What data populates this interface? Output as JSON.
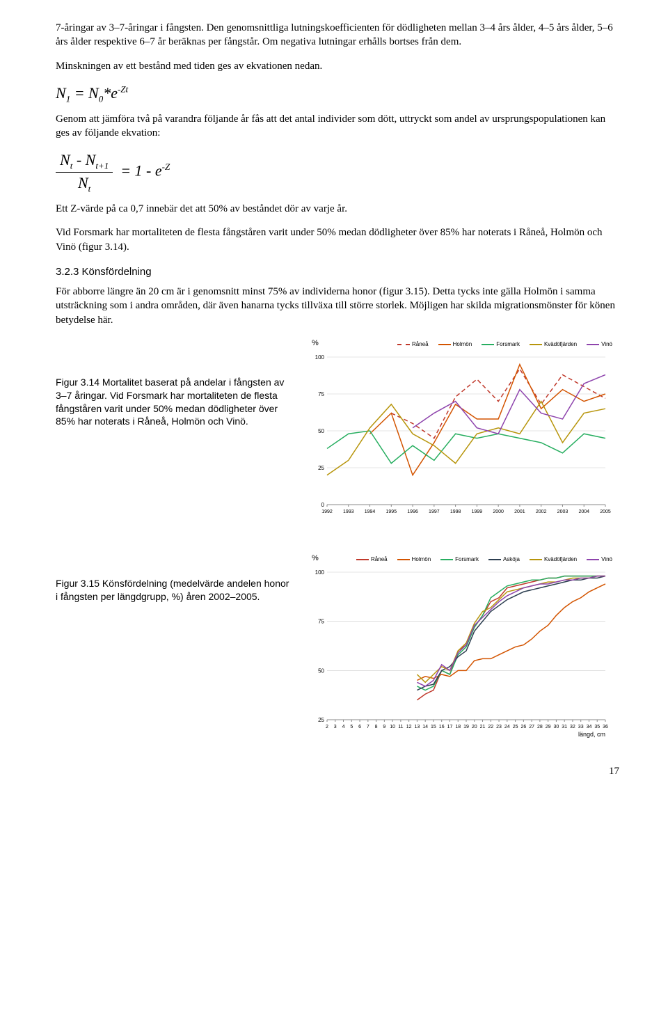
{
  "paragraphs": {
    "p1": "7-åringar av 3–7-åringar i fångsten. Den genomsnittliga lutningskoefficienten för dödligheten mellan 3–4 års ålder, 4–5 års ålder, 5–6 års ålder respektive 6–7 år beräknas per fångstår. Om negativa lutningar erhålls bortses från dem.",
    "p2": "Minskningen av ett bestånd med tiden ges av ekvationen nedan.",
    "p3": "Genom att jämföra två på varandra följande år fås att det antal individer som dött, uttryckt som andel av ursprungspopulationen kan ges av följande ekvation:",
    "p4": "Ett Z-värde på ca 0,7 innebär det att 50% av beståndet dör av varje år.",
    "p5": "Vid Forsmark har mortaliteten de flesta fångståren varit under 50% medan dödligheter över 85% har noterats i Råneå, Holmön och Vinö (figur 3.14).",
    "p6": "För abborre längre än 20 cm är i genomsnitt minst 75% av individerna honor (figur 3.15). Detta tycks inte gälla Holmön i samma utsträckning som i andra områden, där även hanarna tycks tillväxa till större storlek. Möjligen har skilda migrationsmönster för könen betydelse här."
  },
  "heading_323": "3.2.3 Könsfördelning",
  "fig314_caption": "Figur 3.14 Mortalitet baserat på andelar i fångsten av 3–7 åringar. Vid Forsmark har mortaliteten de flesta fångståren varit under 50% medan dödligheter över 85% har noterats i Råneå, Holmön och Vinö.",
  "fig315_caption": "Figur 3.15 Könsfördelning (medelvärde andelen honor i fångsten per längdgrupp, %) åren 2002–2005.",
  "page_number": "17",
  "chart314": {
    "type": "line",
    "y_label": "%",
    "ylim": [
      0,
      100
    ],
    "ytick_step": 25,
    "xticks": [
      "1992",
      "1993",
      "1994",
      "1995",
      "1996",
      "1997",
      "1998",
      "1999",
      "2000",
      "2001",
      "2002",
      "2003",
      "2004",
      "2005"
    ],
    "background_color": "#ffffff",
    "grid_color": "#cccccc",
    "axis_color": "#888888",
    "series": [
      {
        "name": "Råneå",
        "color": "#c0392b",
        "dash": "6,4",
        "values": [
          null,
          null,
          null,
          62,
          55,
          45,
          73,
          85,
          70,
          92,
          68,
          88,
          80,
          72
        ]
      },
      {
        "name": "Holmön",
        "color": "#d35400",
        "dash": null,
        "values": [
          null,
          null,
          48,
          62,
          20,
          42,
          68,
          58,
          58,
          95,
          65,
          78,
          70,
          75
        ]
      },
      {
        "name": "Forsmark",
        "color": "#27ae60",
        "dash": null,
        "values": [
          38,
          48,
          50,
          28,
          40,
          30,
          48,
          45,
          48,
          45,
          42,
          35,
          48,
          45
        ]
      },
      {
        "name": "Kvädöfjärden",
        "color": "#b7950b",
        "dash": null,
        "values": [
          20,
          30,
          52,
          68,
          48,
          40,
          28,
          48,
          52,
          48,
          70,
          42,
          62,
          65
        ]
      },
      {
        "name": "Vinö",
        "color": "#8e44ad",
        "dash": null,
        "values": [
          null,
          null,
          null,
          null,
          52,
          62,
          70,
          52,
          48,
          78,
          62,
          58,
          82,
          88
        ]
      }
    ]
  },
  "chart315": {
    "type": "line",
    "y_label": "%",
    "ylim": [
      25,
      100
    ],
    "ytick_step": 25,
    "x_axis_label": "längd, cm",
    "xticks": [
      "2",
      "3",
      "4",
      "5",
      "6",
      "7",
      "8",
      "9",
      "10",
      "11",
      "12",
      "13",
      "14",
      "15",
      "16",
      "17",
      "18",
      "19",
      "20",
      "21",
      "22",
      "23",
      "24",
      "25",
      "26",
      "27",
      "28",
      "29",
      "30",
      "31",
      "32",
      "33",
      "34",
      "35",
      "36"
    ],
    "background_color": "#ffffff",
    "grid_color": "#cccccc",
    "axis_color": "#888888",
    "series": [
      {
        "name": "Råneå",
        "color": "#c0392b",
        "dash": null,
        "values": [
          null,
          null,
          null,
          null,
          null,
          null,
          null,
          null,
          null,
          null,
          null,
          35,
          38,
          40,
          50,
          48,
          60,
          63,
          72,
          78,
          85,
          87,
          92,
          93,
          94,
          95,
          96,
          97,
          97,
          98,
          98,
          98,
          98,
          98,
          98
        ]
      },
      {
        "name": "Holmön",
        "color": "#d35400",
        "dash": null,
        "values": [
          null,
          null,
          null,
          null,
          null,
          null,
          null,
          null,
          null,
          null,
          null,
          45,
          47,
          46,
          48,
          47,
          50,
          50,
          55,
          56,
          56,
          58,
          60,
          62,
          63,
          66,
          70,
          73,
          78,
          82,
          85,
          87,
          90,
          92,
          94
        ]
      },
      {
        "name": "Forsmark",
        "color": "#27ae60",
        "dash": null,
        "values": [
          null,
          null,
          null,
          null,
          null,
          null,
          null,
          null,
          null,
          null,
          null,
          42,
          40,
          42,
          50,
          48,
          58,
          62,
          72,
          78,
          87,
          90,
          93,
          94,
          95,
          96,
          96,
          97,
          97,
          98,
          98,
          98,
          98,
          98,
          98
        ]
      },
      {
        "name": "Asköja",
        "color": "#2c3e50",
        "dash": null,
        "values": [
          null,
          null,
          null,
          null,
          null,
          null,
          null,
          null,
          null,
          null,
          null,
          40,
          42,
          43,
          50,
          52,
          57,
          60,
          70,
          75,
          80,
          83,
          86,
          88,
          90,
          91,
          92,
          93,
          94,
          95,
          96,
          96,
          97,
          97,
          98
        ]
      },
      {
        "name": "Kvädöfjärden",
        "color": "#b7950b",
        "dash": null,
        "values": [
          null,
          null,
          null,
          null,
          null,
          null,
          null,
          null,
          null,
          null,
          null,
          48,
          44,
          48,
          52,
          50,
          60,
          64,
          74,
          80,
          82,
          86,
          90,
          91,
          92,
          93,
          94,
          95,
          95,
          96,
          97,
          97,
          97,
          98,
          98
        ]
      },
      {
        "name": "Vinö",
        "color": "#8e44ad",
        "dash": null,
        "values": [
          null,
          null,
          null,
          null,
          null,
          null,
          null,
          null,
          null,
          null,
          null,
          44,
          42,
          45,
          53,
          50,
          59,
          63,
          73,
          77,
          81,
          85,
          88,
          90,
          92,
          93,
          94,
          94,
          95,
          96,
          96,
          97,
          97,
          98,
          98
        ]
      }
    ]
  }
}
